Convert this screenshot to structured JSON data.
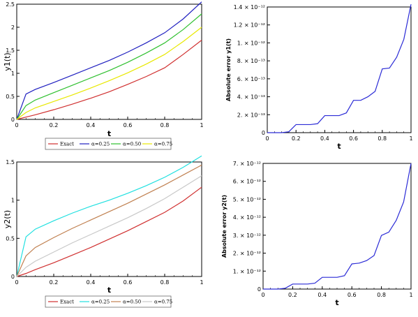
{
  "chart_data": [
    {
      "type": "line",
      "xlabel": "t",
      "ylabel": "y1(t)",
      "xlim": [
        0,
        1
      ],
      "ylim": [
        0,
        2.5
      ],
      "xticks": [
        "0",
        "0.2",
        "0.4",
        "0.6",
        "0.8",
        "1"
      ],
      "yticks": [
        "0",
        "0.5",
        "1",
        "1.5",
        "2",
        "2.5"
      ],
      "legend_placement": "bottom",
      "x": [
        0,
        0.05,
        0.1,
        0.2,
        0.3,
        0.4,
        0.5,
        0.6,
        0.7,
        0.8,
        0.9,
        1.0
      ],
      "series": [
        {
          "name": "Exact",
          "color": "#d03030",
          "values": [
            0,
            0.05,
            0.1,
            0.21,
            0.33,
            0.46,
            0.6,
            0.76,
            0.93,
            1.12,
            1.41,
            1.72
          ]
        },
        {
          "name": "α=0.25",
          "color": "#2020c0",
          "values": [
            0,
            0.55,
            0.65,
            0.8,
            0.96,
            1.12,
            1.28,
            1.46,
            1.66,
            1.88,
            2.18,
            2.55
          ]
        },
        {
          "name": "α=0.50",
          "color": "#30c030",
          "values": [
            0,
            0.3,
            0.42,
            0.58,
            0.74,
            0.9,
            1.06,
            1.24,
            1.44,
            1.66,
            1.95,
            2.29
          ]
        },
        {
          "name": "α=0.75",
          "color": "#e8e800",
          "values": [
            0,
            0.15,
            0.25,
            0.39,
            0.53,
            0.68,
            0.84,
            1.01,
            1.2,
            1.41,
            1.69,
            2.0
          ]
        }
      ]
    },
    {
      "type": "line",
      "xlabel": "t",
      "ylabel": "y2(t)",
      "xlim": [
        0,
        1
      ],
      "ylim": [
        0,
        1.5
      ],
      "xticks": [
        "0",
        "0.2",
        "0.4",
        "0.6",
        "0.8",
        "1"
      ],
      "yticks": [
        "0",
        "0.5",
        "1",
        "1.5"
      ],
      "legend_placement": "bottom",
      "x": [
        0,
        0.05,
        0.1,
        0.2,
        0.3,
        0.4,
        0.5,
        0.6,
        0.7,
        0.8,
        0.9,
        1.0
      ],
      "series": [
        {
          "name": "Exact",
          "color": "#d03030",
          "values": [
            0,
            0.04,
            0.09,
            0.18,
            0.28,
            0.38,
            0.49,
            0.6,
            0.72,
            0.84,
            0.99,
            1.17
          ]
        },
        {
          "name": "α=0.25",
          "color": "#20e0e0",
          "values": [
            0,
            0.52,
            0.62,
            0.73,
            0.83,
            0.92,
            1.0,
            1.09,
            1.19,
            1.3,
            1.43,
            1.58
          ]
        },
        {
          "name": "α=0.50",
          "color": "#c08050",
          "values": [
            0,
            0.27,
            0.38,
            0.51,
            0.63,
            0.74,
            0.85,
            0.96,
            1.08,
            1.2,
            1.33,
            1.46
          ]
        },
        {
          "name": "α=0.75",
          "color": "#c8c8c8",
          "values": [
            0,
            0.12,
            0.2,
            0.32,
            0.44,
            0.55,
            0.66,
            0.77,
            0.89,
            1.02,
            1.17,
            1.32
          ]
        }
      ]
    },
    {
      "type": "line",
      "xlabel": "t",
      "ylabel": "Absolute error y1(t)",
      "xlim": [
        0,
        1
      ],
      "ylim": [
        0,
        1.4e-12
      ],
      "xticks": [
        "0",
        "0.2",
        "0.4",
        "0.6",
        "0.8",
        "1"
      ],
      "yticks": [
        "0",
        "2. × 10⁻¹³",
        "4. × 10⁻¹³",
        "6. × 10⁻¹³",
        "8. × 10⁻¹³",
        "1. × 10⁻¹²",
        "1.2 × 10⁻¹²",
        "1.4 × 10⁻¹²"
      ],
      "x": [
        0,
        0.05,
        0.1,
        0.15,
        0.2,
        0.25,
        0.3,
        0.35,
        0.4,
        0.45,
        0.5,
        0.55,
        0.6,
        0.65,
        0.7,
        0.75,
        0.8,
        0.85,
        0.9,
        0.95,
        1.0
      ],
      "series": [
        {
          "color": "#2b2bd6",
          "values": [
            0,
            0,
            0,
            1e-14,
            9e-14,
            9e-14,
            9e-14,
            1e-13,
            1.9e-13,
            1.9e-13,
            1.9e-13,
            2.2e-13,
            3.6e-13,
            3.6e-13,
            4e-13,
            4.6e-13,
            7.1e-13,
            7.2e-13,
            8.4e-13,
            1.04e-12,
            1.43e-12
          ]
        }
      ]
    },
    {
      "type": "line",
      "xlabel": "t",
      "ylabel": "Absolute error y2(t)",
      "xlim": [
        0,
        1
      ],
      "ylim": [
        0,
        7.5e-12
      ],
      "xticks": [
        "0",
        "0.2",
        "0.4",
        "0.6",
        "0.8",
        "1"
      ],
      "yticks": [
        "0",
        "1. × 10⁻¹²",
        "2. × 10⁻¹²",
        "3. × 10⁻¹²",
        "4. × 10⁻¹²",
        "5. × 10⁻¹²",
        "6. × 10⁻¹²",
        "7. × 10⁻¹²"
      ],
      "x": [
        0,
        0.05,
        0.1,
        0.15,
        0.2,
        0.25,
        0.3,
        0.35,
        0.4,
        0.45,
        0.5,
        0.55,
        0.6,
        0.65,
        0.7,
        0.75,
        0.8,
        0.85,
        0.9,
        0.95,
        1.0
      ],
      "series": [
        {
          "color": "#2b2bd6",
          "values": [
            0,
            0,
            0,
            5e-14,
            3e-13,
            3e-13,
            3e-13,
            3.5e-13,
            7e-13,
            7e-13,
            7e-13,
            8e-13,
            1.5e-12,
            1.55e-12,
            1.7e-12,
            2e-12,
            3.2e-12,
            3.4e-12,
            4.1e-12,
            5.2e-12,
            7.5e-12
          ]
        }
      ]
    }
  ]
}
